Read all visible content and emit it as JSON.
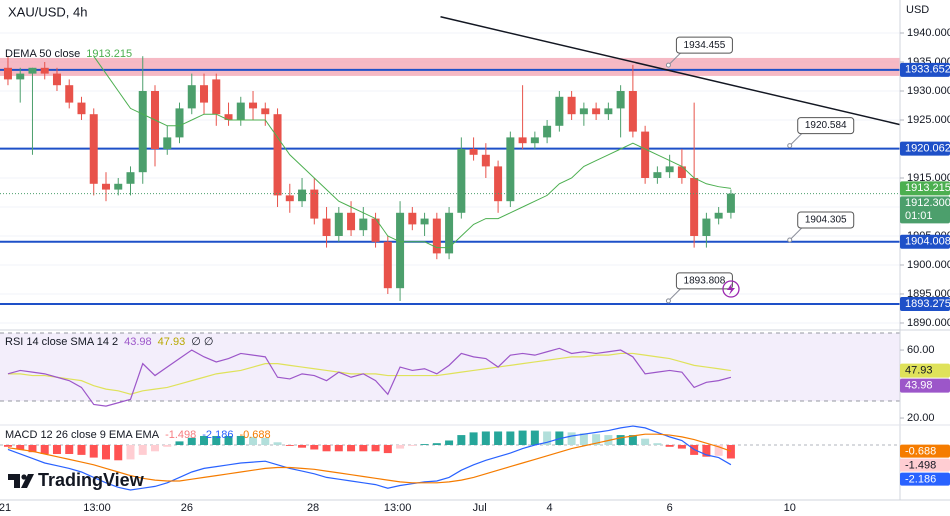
{
  "chart_data": [
    {
      "type": "candlestick",
      "title": "XAU/USD, 4h",
      "y_axis_label": "USD",
      "xlim": [
        -0.65,
        72.8
      ],
      "xticks": [
        {
          "value": -0.24,
          "label": "21"
        },
        {
          "value": 7.27,
          "label": "13:00"
        },
        {
          "value": 14.6,
          "label": "26"
        },
        {
          "value": 24.9,
          "label": "28"
        },
        {
          "value": 31.8,
          "label": "13:00"
        },
        {
          "value": 38.5,
          "label": "Jul"
        },
        {
          "value": 44.2,
          "label": "4"
        },
        {
          "value": 54,
          "label": "6"
        },
        {
          "value": 63.8,
          "label": "10"
        }
      ],
      "ylim": [
        1888.79,
        1945.69
      ],
      "yticks": [
        {
          "value": 1890,
          "label": "1890.000"
        },
        {
          "value": 1895,
          "label": "1895.000"
        },
        {
          "value": 1900,
          "label": "1900.000"
        },
        {
          "value": 1905,
          "label": "1905.000"
        },
        {
          "value": 1910,
          "label": "1910.000"
        },
        {
          "value": 1915,
          "label": "1915.000"
        },
        {
          "value": 1920,
          "label": "1920.000"
        },
        {
          "value": 1925,
          "label": "1925.000"
        },
        {
          "value": 1930,
          "label": "1930.000"
        },
        {
          "value": 1935,
          "label": "1935.000"
        },
        {
          "value": 1940,
          "label": "1940.000"
        }
      ],
      "grid": true,
      "up_color": "#4c9f6c",
      "down_color": "#e8524a",
      "open": [
        1934,
        1932,
        1933,
        1934,
        1933,
        1931,
        1928,
        1926,
        1914,
        1913,
        1914,
        1916,
        1930,
        1920,
        1922,
        1927,
        1931,
        1932,
        1926,
        1925,
        1928,
        1927,
        1926,
        1912,
        1911,
        1913,
        1908,
        1905,
        1909,
        1906,
        1908,
        1904,
        1896,
        1909,
        1907,
        1908,
        1902,
        1909,
        1920,
        1919,
        1917,
        1911,
        1922,
        1921,
        1922,
        1924,
        1929,
        1926,
        1927,
        1926,
        1927,
        1930,
        1923,
        1915,
        1916,
        1917,
        1915,
        1905,
        1908,
        1909
      ],
      "high": [
        1936,
        1934,
        1934,
        1935,
        1934,
        1932,
        1929,
        1927,
        1916,
        1915,
        1917,
        1936,
        1931,
        1924,
        1928,
        1933,
        1933,
        1933,
        1928,
        1929,
        1930,
        1928,
        1927,
        1914,
        1915,
        1915,
        1910,
        1910,
        1911,
        1910,
        1909,
        1905,
        1911,
        1910,
        1909,
        1909,
        1910,
        1922,
        1922,
        1921,
        1918,
        1923,
        1931,
        1923,
        1925,
        1930,
        1930,
        1928,
        1928,
        1928,
        1931,
        1934.5,
        1924,
        1917,
        1919,
        1920,
        1928,
        1909,
        1910,
        1913
      ],
      "low": [
        1931,
        1928,
        1919,
        1932,
        1930,
        1927,
        1925,
        1912,
        1911,
        1912,
        1912,
        1914,
        1917,
        1919,
        1921,
        1926,
        1926,
        1924,
        1924,
        1924,
        1925,
        1924,
        1910,
        1909,
        1910,
        1907,
        1903,
        1904,
        1905,
        1905,
        1903,
        1895,
        1893.8,
        1906,
        1905,
        1901,
        1901,
        1908,
        1918,
        1915,
        1909,
        1910,
        1920,
        1920,
        1921,
        1923,
        1925,
        1924,
        1925,
        1925,
        1922,
        1922,
        1914,
        1914,
        1915,
        1914,
        1903,
        1903,
        1907,
        1908
      ],
      "close": [
        1932,
        1933,
        1934,
        1933,
        1931,
        1928,
        1926,
        1914,
        1913,
        1914,
        1916,
        1930,
        1920,
        1922,
        1927,
        1931,
        1928,
        1926,
        1925,
        1928,
        1927,
        1926,
        1912,
        1911,
        1913,
        1908,
        1905,
        1909,
        1906,
        1908,
        1904,
        1896,
        1909,
        1907,
        1908,
        1902,
        1909,
        1920,
        1919,
        1917,
        1911,
        1922,
        1921,
        1922,
        1924,
        1929,
        1926,
        1927,
        1926,
        1927,
        1930,
        1923,
        1915,
        1916,
        1917,
        1915,
        1905,
        1908,
        1909,
        1912.3
      ],
      "last_price": {
        "value": 1912.3,
        "label": "1912.300"
      },
      "countdown": "01:01",
      "series": [
        {
          "name": "DEMA 50 close",
          "color": "#4caf50",
          "values": [
            null,
            null,
            null,
            null,
            null,
            null,
            null,
            1936,
            1933,
            1930,
            1927,
            1926,
            1925,
            1924,
            1924,
            1925,
            1926,
            1926,
            1925,
            1925,
            1925,
            1925,
            1922,
            1919,
            1917,
            1915,
            1913,
            1911,
            1910,
            1909,
            1908,
            1905,
            1904,
            1904,
            1904,
            1903,
            1903,
            1905,
            1907,
            1908,
            1908,
            1909,
            1910,
            1911,
            1912,
            1914,
            1915,
            1917,
            1918,
            1919,
            1920,
            1921,
            1920,
            1919,
            1918,
            1917,
            1915,
            1914,
            1913.5,
            1913.215
          ]
        }
      ],
      "hlines": [
        1933.652,
        1920.062,
        1904.008,
        1893.275
      ],
      "hline_color": "#1e50c8",
      "zone": [
        1932.6,
        1935.7
      ],
      "zone_color": "#f4a7b5",
      "trendline": {
        "x": [
          35.3,
          72.8
        ],
        "y": [
          1942.8,
          1924.2
        ]
      },
      "callouts": [
        {
          "x": 53.9,
          "value": 1934.455
        },
        {
          "x": 63.8,
          "value": 1920.584
        },
        {
          "x": 63.8,
          "value": 1904.305
        },
        {
          "x": 53.9,
          "value": 1893.808
        }
      ],
      "watermark": "TradingView"
    },
    {
      "type": "line",
      "legend": "RSI 14 close SMA 14 2",
      "legend_extra": "∅ ∅",
      "ylim": [
        15.9,
        71.8
      ],
      "yticks": [
        {
          "value": 60,
          "label": "60.00"
        },
        {
          "value": 20,
          "label": "20.00"
        }
      ],
      "band": [
        30,
        70
      ],
      "band_color": "#f3eefb",
      "series": [
        {
          "color": "#9c56c9",
          "values": [
            46,
            48,
            47,
            46,
            44,
            42,
            38,
            28,
            27,
            29,
            31,
            52,
            45,
            50,
            55,
            60,
            56,
            53,
            55,
            58,
            57,
            56,
            44,
            43,
            46,
            45,
            42,
            47,
            44,
            46,
            42,
            34,
            50,
            48,
            49,
            46,
            51,
            58,
            56,
            55,
            50,
            57,
            58,
            57,
            59,
            61,
            58,
            59,
            58,
            59,
            60,
            56,
            46,
            47,
            48,
            47,
            38,
            41,
            42,
            43.98
          ]
        },
        {
          "color": "#dfe25a",
          "values": [
            46,
            46,
            45,
            45,
            44,
            43,
            42,
            39,
            37,
            36,
            34,
            36,
            37,
            38,
            40,
            42,
            44,
            46,
            47,
            48,
            50,
            52,
            52,
            51,
            50,
            49,
            48,
            47,
            46,
            46,
            46,
            45,
            45,
            45,
            45,
            45,
            46,
            47,
            48,
            49,
            50,
            51,
            52,
            53,
            54,
            55,
            56,
            56,
            57,
            57,
            58,
            58,
            57,
            56,
            55,
            53,
            51,
            50,
            49,
            47.93
          ]
        }
      ]
    },
    {
      "type": "macd",
      "legend": "MACD 12 26 close 9 EMA EMA",
      "ylim": [
        -6.11,
        2.22
      ],
      "histogram": {
        "colors": [
          "#26a69a",
          "#b2dfdb",
          "#ffcdd2",
          "#ff5252"
        ],
        "values": [
          -0.2,
          -0.5,
          -0.8,
          -1,
          -1,
          -1,
          -1.1,
          -1.4,
          -1.6,
          -1.7,
          -1.6,
          -1.1,
          -0.7,
          -0.2,
          0.4,
          0.8,
          1,
          1,
          1,
          1,
          0.9,
          0.8,
          0.3,
          -0.1,
          -0.3,
          -0.5,
          -0.7,
          -0.7,
          -0.7,
          -0.7,
          -0.7,
          -0.9,
          -0.4,
          -0.1,
          0.1,
          0.2,
          0.5,
          1.1,
          1.4,
          1.5,
          1.5,
          1.5,
          1.6,
          1.6,
          1.5,
          1.5,
          1.4,
          1.3,
          1.2,
          1.1,
          1.1,
          1.1,
          0.7,
          0.2,
          -0.2,
          -0.4,
          -1.1,
          -1.3,
          -1.2,
          -1.498
        ]
      },
      "series": [
        {
          "color": "#2962ff",
          "values": [
            -0.5,
            -1,
            -1.5,
            -2,
            -2.3,
            -2.6,
            -3,
            -3.6,
            -4.2,
            -4.7,
            -5,
            -4.8,
            -4.6,
            -4.2,
            -3.6,
            -3,
            -2.6,
            -2.4,
            -2.2,
            -2,
            -1.9,
            -1.8,
            -2.2,
            -2.6,
            -2.9,
            -3.2,
            -3.6,
            -3.8,
            -4,
            -4.2,
            -4.4,
            -4.8,
            -4.5,
            -4.3,
            -4.1,
            -4,
            -3.6,
            -2.8,
            -2.2,
            -1.7,
            -1.3,
            -0.9,
            -0.4,
            0,
            0.3,
            0.7,
            1,
            1.2,
            1.4,
            1.6,
            1.9,
            2.1,
            1.9,
            1.4,
            0.9,
            0.5,
            -0.5,
            -1.1,
            -1.4,
            -2.186
          ]
        },
        {
          "color": "#f57c00",
          "values": [
            -0.3,
            -0.5,
            -0.7,
            -1,
            -1.3,
            -1.6,
            -1.9,
            -2.2,
            -2.6,
            -3,
            -3.4,
            -3.7,
            -3.9,
            -4,
            -4,
            -3.8,
            -3.6,
            -3.4,
            -3.2,
            -3,
            -2.8,
            -2.6,
            -2.5,
            -2.5,
            -2.6,
            -2.7,
            -2.9,
            -3.1,
            -3.3,
            -3.5,
            -3.7,
            -3.9,
            -4.1,
            -4.2,
            -4.2,
            -4.2,
            -4.1,
            -3.9,
            -3.6,
            -3.2,
            -2.8,
            -2.4,
            -2,
            -1.6,
            -1.2,
            -0.8,
            -0.4,
            -0.1,
            0.2,
            0.5,
            0.8,
            1,
            1.2,
            1.2,
            1.1,
            0.9,
            0.6,
            0.2,
            -0.2,
            -0.688
          ]
        }
      ]
    }
  ]
}
